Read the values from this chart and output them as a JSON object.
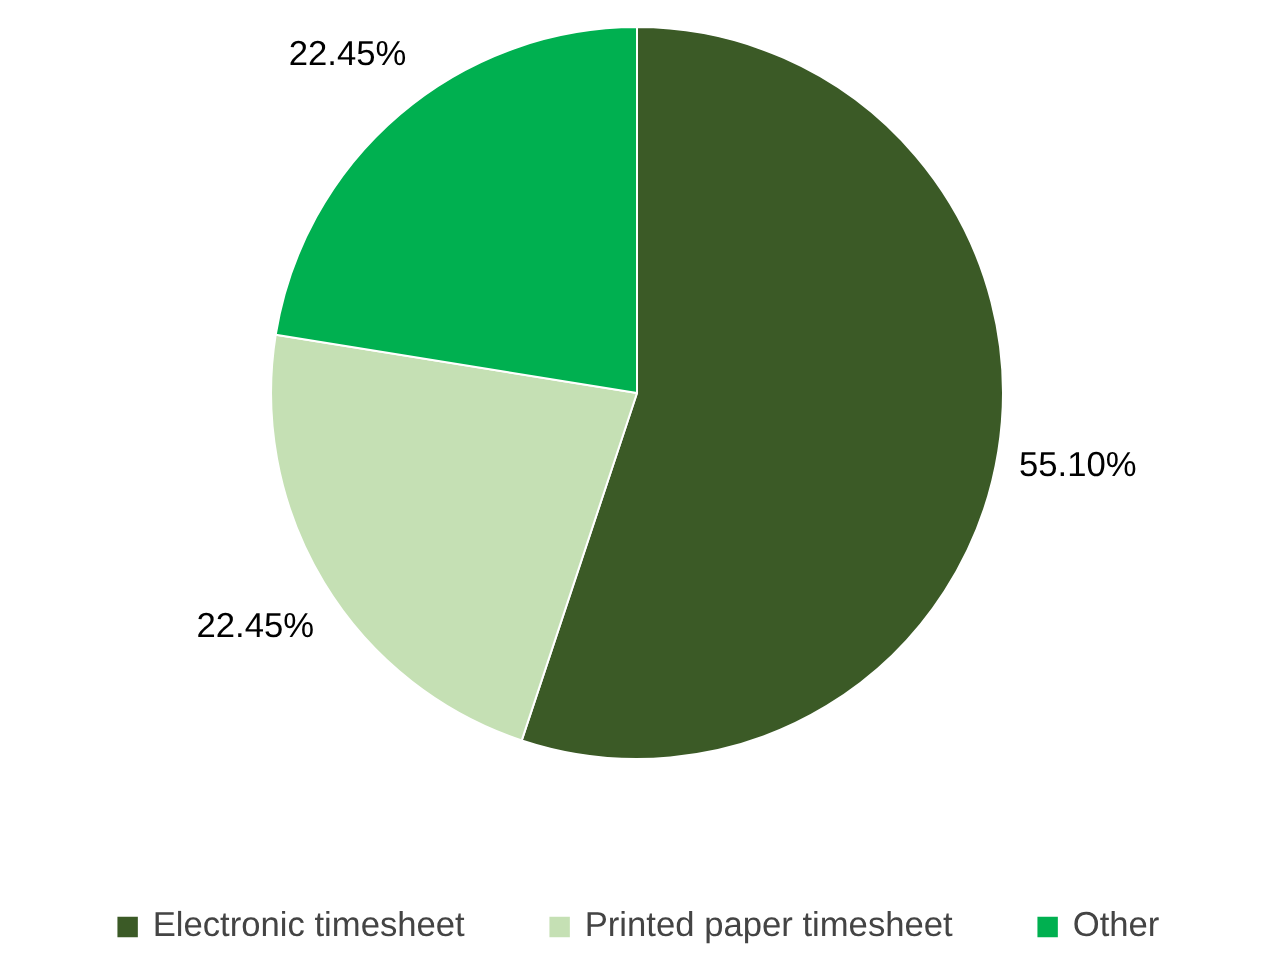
{
  "chart_data": {
    "type": "pie",
    "categories": [
      "Electronic timesheet",
      "Printed paper timesheet",
      "Other"
    ],
    "values": [
      55.1,
      22.45,
      22.45
    ],
    "colors": [
      "#3b5a26",
      "#c5e0b4",
      "#00b050"
    ],
    "value_labels": [
      "55.10%",
      "22.45%",
      "22.45%"
    ],
    "legend": "bottom"
  }
}
